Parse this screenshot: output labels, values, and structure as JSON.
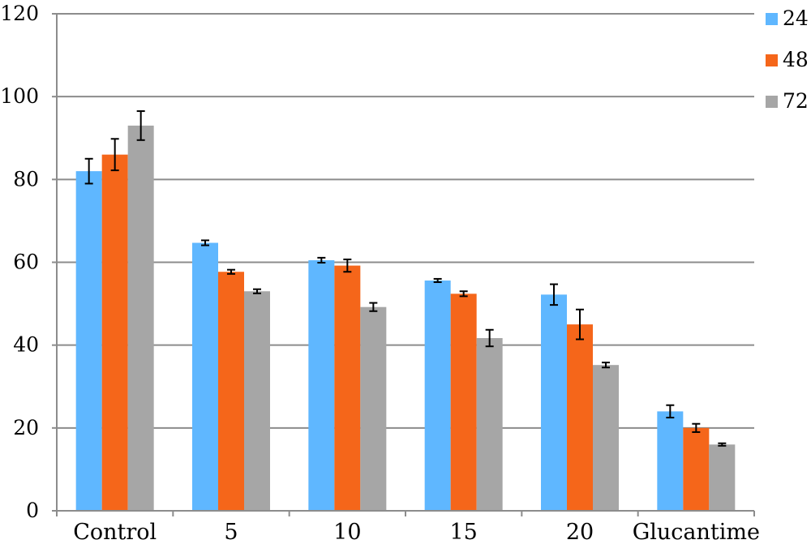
{
  "chart_data": {
    "type": "bar",
    "categories": [
      "Control",
      "5",
      "10",
      "15",
      "20",
      "Glucantime"
    ],
    "series": [
      {
        "name": "24",
        "color": "#5fb7ff",
        "values": [
          82,
          64.7,
          60.5,
          55.6,
          52.2,
          24
        ],
        "errors": [
          3,
          0.6,
          0.6,
          0.4,
          2.5,
          1.5
        ]
      },
      {
        "name": "48",
        "color": "#f5661a",
        "values": [
          86,
          57.7,
          59.2,
          52.4,
          45,
          20
        ],
        "errors": [
          3.8,
          0.5,
          1.5,
          0.6,
          3.6,
          1
        ]
      },
      {
        "name": "72",
        "color": "#a6a6a6",
        "values": [
          93,
          53,
          49.2,
          41.7,
          35.2,
          16
        ],
        "errors": [
          3.5,
          0.5,
          1,
          2,
          0.6,
          0.3
        ]
      }
    ],
    "ylim": [
      0,
      120
    ],
    "yticks": [
      "0",
      "20",
      "40",
      "60",
      "80",
      "100",
      "120"
    ],
    "grid": true,
    "legend_position": "right"
  }
}
